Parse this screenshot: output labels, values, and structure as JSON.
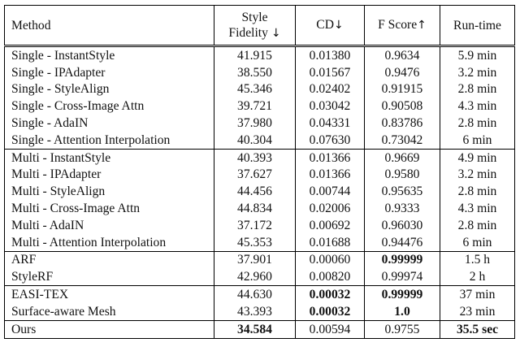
{
  "headers": {
    "method": "Method",
    "style_fidelity_line1": "Style",
    "style_fidelity_line2": "Fidelity",
    "style_arrow": "↓",
    "cd": "CD",
    "cd_arrow": "↓",
    "fscore": "F Score",
    "fscore_arrow": "↑",
    "runtime": "Run-time"
  },
  "groups": [
    {
      "rows": [
        {
          "method": "Single - InstantStyle",
          "style": "41.915",
          "cd": "0.01380",
          "fscore": "0.9634",
          "runtime": "5.9 min"
        },
        {
          "method": "Single - IPAdapter",
          "style": "38.550",
          "cd": "0.01567",
          "fscore": "0.9476",
          "runtime": "3.2 min"
        },
        {
          "method": "Single - StyleAlign",
          "style": "45.346",
          "cd": "0.02402",
          "fscore": "0.91915",
          "runtime": "2.8 min"
        },
        {
          "method": "Single - Cross-Image Attn",
          "style": "39.721",
          "cd": "0.03042",
          "fscore": "0.90508",
          "runtime": "4.3 min"
        },
        {
          "method": "Single - AdaIN",
          "style": "37.980",
          "cd": "0.04331",
          "fscore": "0.83786",
          "runtime": "2.8 min"
        },
        {
          "method": "Single - Attention Interpolation",
          "style": "40.304",
          "cd": "0.07630",
          "fscore": "0.73042",
          "runtime": "6 min"
        }
      ]
    },
    {
      "rows": [
        {
          "method": "Multi - InstantStyle",
          "style": "40.393",
          "cd": "0.01366",
          "fscore": "0.9669",
          "runtime": "4.9 min"
        },
        {
          "method": "Multi - IPAdapter",
          "style": "37.627",
          "cd": "0.01366",
          "fscore": "0.9580",
          "runtime": "3.2 min"
        },
        {
          "method": "Multi - StyleAlign",
          "style": "44.456",
          "cd": "0.00744",
          "fscore": "0.95635",
          "runtime": "2.8 min"
        },
        {
          "method": "Multi - Cross-Image Attn",
          "style": "44.834",
          "cd": "0.02006",
          "fscore": "0.9333",
          "runtime": "4.3 min"
        },
        {
          "method": "Multi - AdaIN",
          "style": "37.172",
          "cd": "0.00692",
          "fscore": "0.96030",
          "runtime": "2.8 min"
        },
        {
          "method": "Multi - Attention Interpolation",
          "style": "45.353",
          "cd": "0.01688",
          "fscore": "0.94476",
          "runtime": "6 min"
        }
      ]
    },
    {
      "rows": [
        {
          "method": "ARF",
          "style": "37.901",
          "cd": "0.00060",
          "fscore": "0.99999",
          "runtime": "1.5 h",
          "bold": [
            "fscore"
          ]
        },
        {
          "method": "StyleRF",
          "style": "42.960",
          "cd": "0.00820",
          "fscore": "0.99974",
          "runtime": "2 h"
        }
      ]
    },
    {
      "rows": [
        {
          "method": "EASI-TEX",
          "style": "44.630",
          "cd": "0.00032",
          "fscore": "0.99999",
          "runtime": "37 min",
          "bold": [
            "cd",
            "fscore"
          ]
        },
        {
          "method": "Surface-aware Mesh",
          "style": "43.393",
          "cd": "0.00032",
          "fscore": "1.0",
          "runtime": "23 min",
          "bold": [
            "cd",
            "fscore"
          ]
        }
      ]
    },
    {
      "rows": [
        {
          "method": "Ours",
          "style": "34.584",
          "cd": "0.00594",
          "fscore": "0.9755",
          "runtime": "35.5 sec",
          "bold": [
            "style",
            "runtime"
          ]
        }
      ]
    }
  ]
}
